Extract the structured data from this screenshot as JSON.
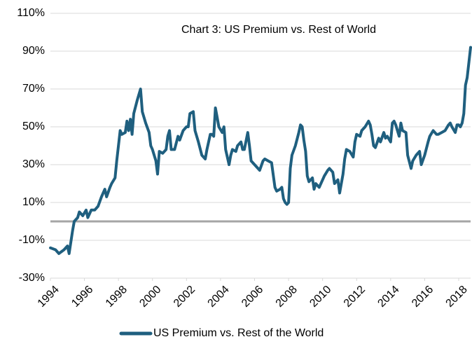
{
  "chart_data": {
    "type": "line",
    "title": "Chart 3: US Premium vs. Rest of World",
    "xlim": [
      1994,
      2018.7
    ],
    "xticks": [
      1994,
      1996,
      1998,
      2000,
      2002,
      2004,
      2006,
      2008,
      2010,
      2012,
      2014,
      2016,
      2018
    ],
    "ylim": [
      -30,
      110
    ],
    "yticks": [
      {
        "value": -30,
        "label": "-30%"
      },
      {
        "value": -10,
        "label": "-10%"
      },
      {
        "value": 10,
        "label": "10%"
      },
      {
        "value": 30,
        "label": "30%"
      },
      {
        "value": 50,
        "label": "50%"
      },
      {
        "value": 70,
        "label": "70%"
      },
      {
        "value": 90,
        "label": "90%"
      },
      {
        "value": 110,
        "label": "110%"
      }
    ],
    "grid": true,
    "hline": 0,
    "legend": "bottom",
    "x": [
      1994.0,
      1994.3,
      1994.5,
      1994.8,
      1995.0,
      1995.1,
      1995.3,
      1995.4,
      1995.6,
      1995.7,
      1995.9,
      1996.1,
      1996.2,
      1996.4,
      1996.6,
      1996.8,
      1997.0,
      1997.2,
      1997.3,
      1997.5,
      1997.6,
      1997.8,
      1997.9,
      1998.1,
      1998.2,
      1998.4,
      1998.5,
      1998.6,
      1998.7,
      1998.8,
      1998.9,
      1999.1,
      1999.3,
      1999.4,
      1999.6,
      1999.8,
      1999.9,
      2000.0,
      2000.2,
      2000.3,
      2000.4,
      2000.6,
      2000.8,
      2000.9,
      2001.0,
      2001.1,
      2001.3,
      2001.5,
      2001.6,
      2001.8,
      2002.0,
      2002.1,
      2002.2,
      2002.4,
      2002.5,
      2002.7,
      2002.9,
      2003.1,
      2003.2,
      2003.4,
      2003.5,
      2003.6,
      2003.7,
      2003.8,
      2003.9,
      2004.1,
      2004.2,
      2004.3,
      2004.5,
      2004.6,
      2004.7,
      2004.9,
      2005.0,
      2005.2,
      2005.3,
      2005.4,
      2005.6,
      2005.7,
      2005.8,
      2006.0,
      2006.2,
      2006.3,
      2006.5,
      2006.6,
      2006.8,
      2007.0,
      2007.2,
      2007.3,
      2007.5,
      2007.6,
      2007.7,
      2007.8,
      2007.9,
      2008.0,
      2008.1,
      2008.2,
      2008.4,
      2008.6,
      2008.7,
      2008.8,
      2008.9,
      2009.0,
      2009.1,
      2009.2,
      2009.4,
      2009.5,
      2009.6,
      2009.8,
      2010.0,
      2010.1,
      2010.3,
      2010.4,
      2010.6,
      2010.7,
      2010.9,
      2011.0,
      2011.2,
      2011.3,
      2011.4,
      2011.6,
      2011.8,
      2011.9,
      2012.0,
      2012.2,
      2012.3,
      2012.5,
      2012.7,
      2012.8,
      2012.9,
      2013.0,
      2013.1,
      2013.3,
      2013.4,
      2013.6,
      2013.7,
      2013.8,
      2014.0,
      2014.1,
      2014.2,
      2014.3,
      2014.5,
      2014.6,
      2014.7,
      2014.9,
      2015.0,
      2015.2,
      2015.3,
      2015.5,
      2015.7,
      2015.8,
      2016.0,
      2016.2,
      2016.3,
      2016.5,
      2016.7,
      2016.8,
      2017.0,
      2017.2,
      2017.4,
      2017.5,
      2017.6,
      2017.8,
      2017.9,
      2018.0,
      2018.1,
      2018.2,
      2018.3,
      2018.4,
      2018.5,
      2018.7
    ],
    "series": [
      {
        "name": "US Premium vs. Rest of the World",
        "color": "#1f5f7f",
        "values": [
          -14,
          -15,
          -17,
          -15,
          -13,
          -17,
          -5,
          0,
          2,
          5,
          3,
          6,
          2,
          6,
          6,
          8,
          13,
          17,
          13,
          18,
          20,
          23,
          32,
          48,
          46,
          47,
          53,
          48,
          54,
          46,
          57,
          64,
          70,
          58,
          52,
          47,
          40,
          38,
          32,
          25,
          37,
          36,
          38,
          45,
          48,
          38,
          38,
          45,
          43,
          48,
          50,
          50,
          57,
          58,
          48,
          42,
          35,
          33,
          38,
          46,
          46,
          45,
          60,
          55,
          50,
          47,
          50,
          38,
          30,
          35,
          38,
          37,
          40,
          42,
          38,
          38,
          47,
          40,
          32,
          30,
          28,
          27,
          32,
          33,
          32,
          31,
          18,
          16,
          17,
          18,
          12,
          10,
          9,
          10,
          28,
          35,
          40,
          47,
          51,
          50,
          43,
          37,
          24,
          21,
          23,
          17,
          20,
          18,
          22,
          24,
          27,
          28,
          26,
          20,
          22,
          15,
          25,
          33,
          38,
          37,
          34,
          42,
          46,
          45,
          48,
          50,
          53,
          51,
          46,
          40,
          39,
          44,
          42,
          47,
          44,
          45,
          42,
          52,
          53,
          51,
          45,
          52,
          48,
          47,
          35,
          28,
          32,
          35,
          37,
          30,
          35,
          42,
          45,
          48,
          46,
          46,
          47,
          48,
          51,
          52,
          50,
          47,
          51,
          51,
          50,
          52,
          57,
          72,
          76,
          92
        ]
      }
    ]
  }
}
